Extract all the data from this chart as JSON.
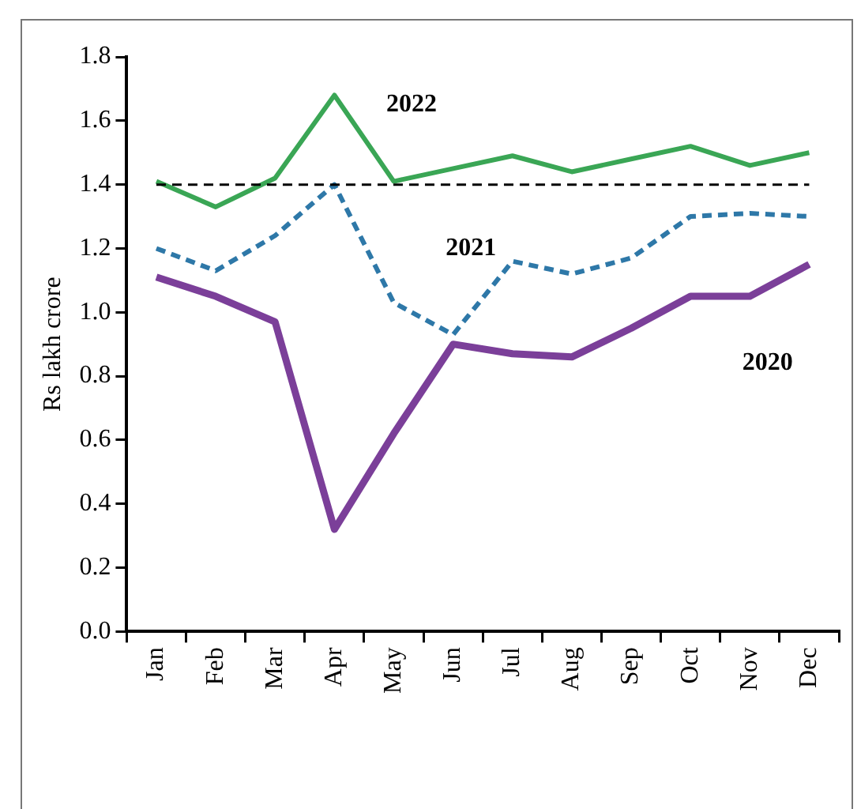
{
  "chart_data": {
    "type": "line",
    "ylabel": "Rs lakh crore",
    "categories": [
      "Jan",
      "Feb",
      "Mar",
      "Apr",
      "May",
      "Jun",
      "Jul",
      "Aug",
      "Sep",
      "Oct",
      "Nov",
      "Dec"
    ],
    "series": [
      {
        "name": "2022",
        "color": "#3aa655",
        "line_style": "solid",
        "values": [
          1.41,
          1.33,
          1.42,
          1.68,
          1.41,
          1.45,
          1.49,
          1.44,
          1.48,
          1.52,
          1.46,
          1.5
        ]
      },
      {
        "name": "2021",
        "color": "#2e78a8",
        "line_style": "dashed",
        "values": [
          1.2,
          1.13,
          1.24,
          1.4,
          1.03,
          0.93,
          1.16,
          1.12,
          1.17,
          1.3,
          1.31,
          1.3
        ]
      },
      {
        "name": "2020",
        "color": "#7b3f99",
        "line_style": "solid",
        "values": [
          1.11,
          1.05,
          0.97,
          0.32,
          0.62,
          0.9,
          0.87,
          0.86,
          0.95,
          1.05,
          1.05,
          1.15
        ]
      }
    ],
    "ylim": [
      0,
      1.8
    ],
    "yticks": [
      {
        "value": 0,
        "label": "0.0"
      },
      0.2,
      0.4,
      0.6,
      0.8,
      {
        "value": 1,
        "label": "1.0"
      },
      1.2,
      1.4,
      1.6,
      1.8
    ],
    "grid": false,
    "legend": false,
    "marker": "none",
    "ref_lines": [
      {
        "axis": "y",
        "value": 1.4,
        "color": "#000000",
        "line_style": "dashed"
      }
    ]
  }
}
